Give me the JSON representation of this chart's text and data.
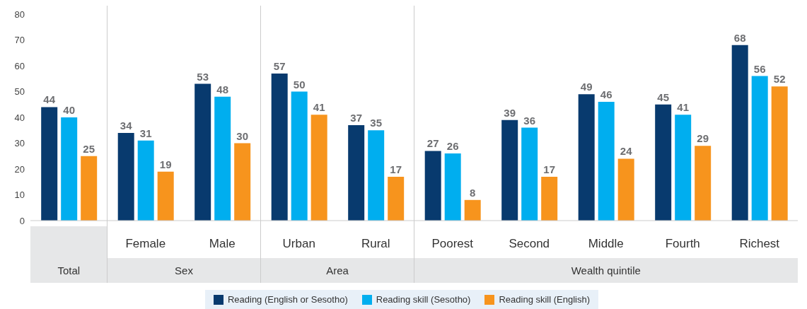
{
  "chart_data": {
    "type": "bar",
    "categories": [
      null,
      "Female",
      "Male",
      "Urban",
      "Rural",
      "Poorest",
      "Second",
      "Middle",
      "Fourth",
      "Richest"
    ],
    "series": [
      {
        "name": "Reading (English or Sesotho)",
        "color": "#083a6e",
        "values": [
          44,
          34,
          53,
          57,
          37,
          27,
          39,
          49,
          45,
          68
        ]
      },
      {
        "name": "Reading skill  (Sesotho)",
        "color": "#00aeef",
        "values": [
          40,
          31,
          48,
          50,
          35,
          26,
          36,
          46,
          41,
          56
        ]
      },
      {
        "name": "Reading skill (English)",
        "color": "#f7941d",
        "values": [
          25,
          19,
          30,
          41,
          17,
          8,
          17,
          24,
          29,
          52
        ]
      }
    ],
    "ylim": [
      0,
      80
    ],
    "yticks": [
      0,
      10,
      20,
      30,
      40,
      50,
      60,
      70,
      80
    ],
    "grid": false,
    "legend": "bottom",
    "data_labels": true,
    "annotations": [
      "Total",
      "Sex",
      "Area",
      "Wealth quintile"
    ]
  }
}
